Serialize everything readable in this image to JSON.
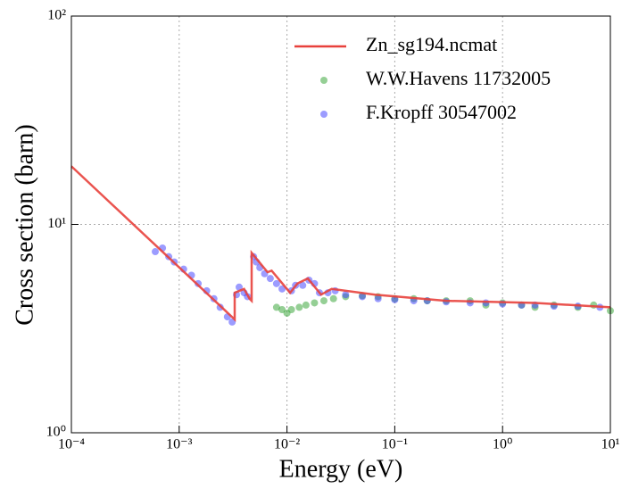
{
  "chart_data": {
    "type": "line",
    "xlabel": "Energy (eV)",
    "ylabel": "Cross section (barn)",
    "xscale": "log",
    "yscale": "log",
    "xlim": [
      0.0001,
      10
    ],
    "ylim": [
      1,
      100
    ],
    "xticks": [
      {
        "value": 0.0001,
        "label": "10⁻⁴"
      },
      {
        "value": 0.001,
        "label": "10⁻³"
      },
      {
        "value": 0.01,
        "label": "10⁻²"
      },
      {
        "value": 0.1,
        "label": "10⁻¹"
      },
      {
        "value": 1,
        "label": "10⁰"
      },
      {
        "value": 10,
        "label": "10¹"
      }
    ],
    "yticks": [
      {
        "value": 1,
        "label": "10⁰"
      },
      {
        "value": 10,
        "label": "10¹"
      },
      {
        "value": 100,
        "label": "10²"
      }
    ],
    "grid": true,
    "legend": "upper right",
    "series": [
      {
        "name": "Zn_sg194.ncmat",
        "type": "line",
        "color": "#e8413c",
        "x": [
          0.0001,
          0.00327,
          0.00327,
          0.004,
          0.0045,
          0.0047,
          0.0047,
          0.0066,
          0.0072,
          0.0107,
          0.0125,
          0.0156,
          0.0207,
          0.026,
          0.0654,
          0.3,
          2,
          10
        ],
        "values": [
          19,
          3.5,
          4.7,
          4.9,
          4.4,
          4.3,
          7.3,
          5.9,
          6.0,
          4.7,
          5.2,
          5.5,
          4.6,
          4.9,
          4.6,
          4.3,
          4.2,
          4.0
        ]
      },
      {
        "name": "W.W.Havens 11732005",
        "type": "scatter",
        "color": "#2ca02c",
        "x": [
          0.008,
          0.009,
          0.01,
          0.011,
          0.013,
          0.015,
          0.018,
          0.022,
          0.027,
          0.035,
          0.05,
          0.07,
          0.1,
          0.15,
          0.2,
          0.3,
          0.5,
          0.7,
          1,
          1.5,
          2,
          3,
          5,
          7,
          10
        ],
        "values": [
          4.0,
          3.9,
          3.75,
          3.9,
          4.0,
          4.1,
          4.2,
          4.3,
          4.4,
          4.5,
          4.55,
          4.5,
          4.4,
          4.4,
          4.3,
          4.3,
          4.3,
          4.1,
          4.2,
          4.1,
          4.0,
          4.1,
          4.0,
          4.1,
          3.85
        ]
      },
      {
        "name": "F.Kropff 30547002",
        "type": "scatter",
        "color": "#3a3aff",
        "x": [
          0.0006,
          0.0007,
          0.0008,
          0.0009,
          0.0011,
          0.0013,
          0.0015,
          0.0018,
          0.0021,
          0.0024,
          0.0028,
          0.0031,
          0.0034,
          0.0036,
          0.004,
          0.0043,
          0.0049,
          0.0052,
          0.0056,
          0.0062,
          0.007,
          0.008,
          0.009,
          0.011,
          0.012,
          0.014,
          0.016,
          0.018,
          0.02,
          0.024,
          0.028,
          0.035,
          0.05,
          0.07,
          0.1,
          0.15,
          0.2,
          0.3,
          0.5,
          0.7,
          1,
          1.5,
          2,
          3,
          5,
          8
        ],
        "values": [
          7.4,
          7.7,
          7.0,
          6.6,
          6.1,
          5.7,
          5.2,
          4.8,
          4.4,
          4.0,
          3.6,
          3.4,
          4.6,
          5.0,
          4.7,
          4.5,
          7.0,
          6.6,
          6.2,
          5.8,
          5.5,
          5.2,
          4.9,
          4.8,
          5.1,
          5.1,
          5.4,
          5.2,
          4.7,
          4.7,
          4.8,
          4.6,
          4.5,
          4.4,
          4.35,
          4.3,
          4.3,
          4.25,
          4.2,
          4.2,
          4.15,
          4.1,
          4.1,
          4.05,
          4.05,
          4.0
        ]
      }
    ]
  }
}
